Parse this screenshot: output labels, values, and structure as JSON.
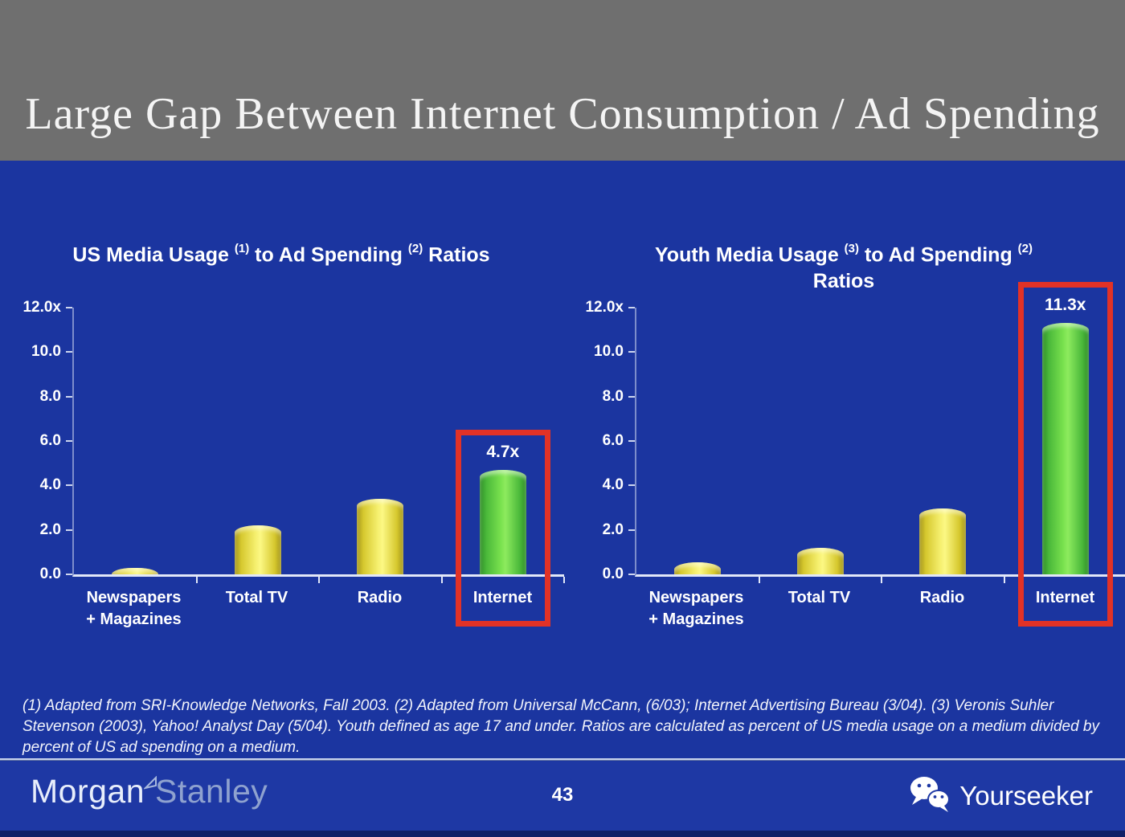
{
  "slide": {
    "title": "Large Gap Between Internet Consumption / Ad Spending",
    "footnote": "(1) Adapted from SRI-Knowledge Networks, Fall 2003.  (2) Adapted from Universal McCann, (6/03); Internet Advertising Bureau (3/04). (3) Veronis Suhler Stevenson (2003), Yahoo! Analyst Day (5/04).  Youth defined as age 17 and under.  Ratios are calculated as percent of US media usage on a medium divided by percent of US ad spending on a medium.",
    "page_number": "43"
  },
  "footer": {
    "brand_part1": "Morgan",
    "brand_part2": "Stanley",
    "watermark": "Yourseeker",
    "watermark_icon": "wechat-icon"
  },
  "colors": {
    "header_gray": "#6f6f6f",
    "background_blue": "#1b35a0",
    "footer_blue": "#1e38a4",
    "bar_yellow": "#f0e85a",
    "bar_green": "#6fdc4a",
    "highlight_red": "#e23226",
    "text_white": "#ffffff",
    "bottom_strip_navy": "#101f66"
  },
  "chart_data": [
    {
      "type": "bar",
      "title": "US Media Usage (1) to Ad Spending (2) Ratios",
      "title_segments": [
        {
          "t": "US Media Usage "
        },
        {
          "sup": "(1)"
        },
        {
          "t": " to Ad Spending "
        },
        {
          "sup": "(2)"
        },
        {
          "t": " Ratios"
        }
      ],
      "ylim": [
        0,
        12
      ],
      "yticks": [
        {
          "label": "12.0x",
          "v": 12
        },
        {
          "label": "10.0",
          "v": 10
        },
        {
          "label": "8.0",
          "v": 8
        },
        {
          "label": "6.0",
          "v": 6
        },
        {
          "label": "4.0",
          "v": 4
        },
        {
          "label": "2.0",
          "v": 2
        },
        {
          "label": "0.0",
          "v": 0
        }
      ],
      "categories": [
        [
          "Newspapers",
          "+ Magazines"
        ],
        [
          "Total TV"
        ],
        [
          "Radio"
        ],
        [
          "Internet"
        ]
      ],
      "values": [
        0.3,
        2.2,
        3.4,
        4.7
      ],
      "bar_colors": [
        "yellow",
        "yellow",
        "yellow",
        "green"
      ],
      "grid": false,
      "highlight": {
        "index": 3,
        "value_label": "4.7x"
      }
    },
    {
      "type": "bar",
      "title": "Youth Media Usage (3) to Ad Spending (2) Ratios",
      "title_segments": [
        {
          "t": "Youth Media Usage "
        },
        {
          "sup": "(3)"
        },
        {
          "t": " to Ad Spending "
        },
        {
          "sup": "(2)"
        },
        {
          "br": true
        },
        {
          "t": "Ratios"
        }
      ],
      "ylim": [
        0,
        12
      ],
      "yticks": [
        {
          "label": "12.0x",
          "v": 12
        },
        {
          "label": "10.0",
          "v": 10
        },
        {
          "label": "8.0",
          "v": 8
        },
        {
          "label": "6.0",
          "v": 6
        },
        {
          "label": "4.0",
          "v": 4
        },
        {
          "label": "2.0",
          "v": 2
        },
        {
          "label": "0.0",
          "v": 0
        }
      ],
      "categories": [
        [
          "Newspapers",
          "+ Magazines"
        ],
        [
          "Total TV"
        ],
        [
          "Radio"
        ],
        [
          "Internet"
        ]
      ],
      "values": [
        0.55,
        1.2,
        2.95,
        11.3
      ],
      "bar_colors": [
        "yellow",
        "yellow",
        "yellow",
        "green"
      ],
      "grid": false,
      "highlight": {
        "index": 3,
        "value_label": "11.3x"
      }
    }
  ]
}
